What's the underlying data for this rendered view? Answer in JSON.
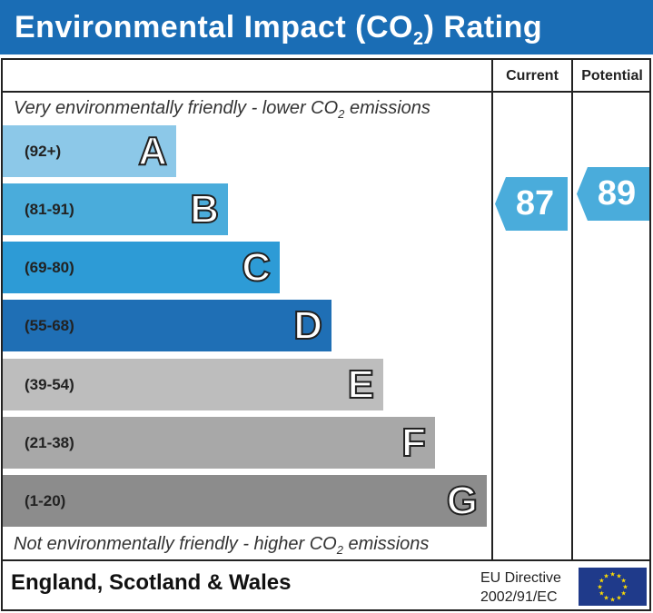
{
  "title": {
    "text": "Environmental Impact (CO",
    "sub": "2",
    "suffix": ") Rating"
  },
  "columns": {
    "current": "Current",
    "potential": "Potential"
  },
  "top_note": {
    "text": "Very environmentally friendly - lower CO",
    "sub": "2",
    "suffix": " emissions"
  },
  "bottom_note": {
    "text": "Not environmentally friendly - higher CO",
    "sub": "2",
    "suffix": " emissions"
  },
  "bands": [
    {
      "letter": "A",
      "range": "(92+)",
      "color": "#8cc8e8"
    },
    {
      "letter": "B",
      "range": "(81-91)",
      "color": "#4aacdb"
    },
    {
      "letter": "C",
      "range": "(69-80)",
      "color": "#2d9bd6"
    },
    {
      "letter": "D",
      "range": "(55-68)",
      "color": "#1f6fb5"
    },
    {
      "letter": "E",
      "range": "(39-54)",
      "color": "#bdbdbd"
    },
    {
      "letter": "F",
      "range": "(21-38)",
      "color": "#a8a8a8"
    },
    {
      "letter": "G",
      "range": "(1-20)",
      "color": "#8c8c8c"
    }
  ],
  "current": {
    "value": "87",
    "band": "B",
    "color": "#4aacdb"
  },
  "potential": {
    "value": "89",
    "band": "B",
    "color": "#4aacdb"
  },
  "footer": {
    "region": "England, Scotland & Wales",
    "directive_line1": "EU Directive",
    "directive_line2": "2002/91/EC",
    "flag_icon": "eu-flag-icon"
  }
}
